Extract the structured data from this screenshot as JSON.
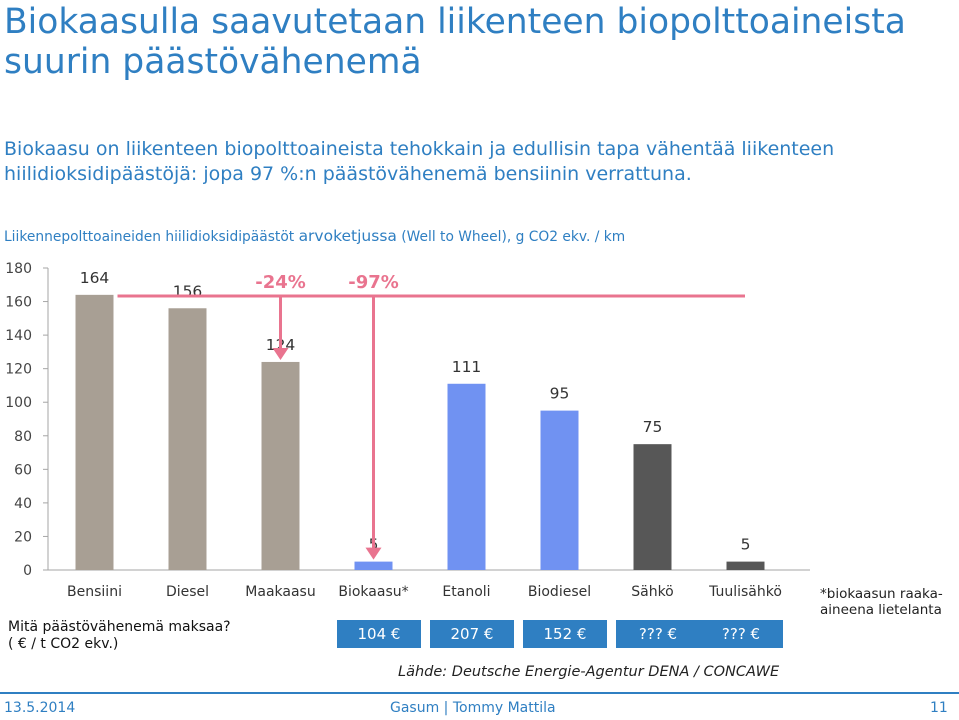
{
  "slide": {
    "title": "Biokaasulla saavutetaan liikenteen biopolttoaineista suurin päästövähenemä",
    "subtitle": "Biokaasu on liikenteen biopolttoaineista tehokkain ja edullisin tapa vähentää liikenteen hiilidioksidipäästöjä: jopa 97 %:n päästövähenemä bensiinin verrattuna.",
    "chart_caption_part1": "Liikennepolttoaineiden hiilidioksidipäästöt ",
    "chart_caption_part2": "arvoketjussa",
    "chart_caption_part3": " (Well to Wheel), g CO2 ekv. / km",
    "cost_question_line1": "Mitä päästövähenemä maksaa?",
    "cost_question_line2": "( € / t CO2 ekv.)",
    "cost_values": [
      "104 €",
      "207 €",
      "152 €",
      "??? €",
      "??? €"
    ],
    "source": "Lähde: Deutsche Energie-Agentur DENA / CONCAWE",
    "footnote": "*biokaasun raaka-aineena lietelanta",
    "footer_date": "13.5.2014",
    "footer_center": "Gasum | Tommy Mattila",
    "footer_page": "11"
  },
  "colors": {
    "accent": "#2f7fc2",
    "fossil": "#a89f94",
    "bio": "#7092f2",
    "electric": "#575757",
    "reduction": "#e9748f"
  },
  "chart_data": {
    "type": "bar",
    "categories": [
      "Bensiini",
      "Diesel",
      "Maakaasu",
      "Biokaasu*",
      "Etanoli",
      "Biodiesel",
      "Sähkö",
      "Tuulisähkö"
    ],
    "values": [
      164,
      156,
      124,
      5,
      111,
      95,
      75,
      5
    ],
    "groups": [
      "fossil",
      "fossil",
      "fossil",
      "bio",
      "bio",
      "bio",
      "electric",
      "electric"
    ],
    "data_labels": [
      "164",
      "156",
      "124",
      "5",
      "111",
      "95",
      "75",
      "5"
    ],
    "ylim": [
      0,
      180
    ],
    "yticks": [
      "0",
      "20",
      "40",
      "60",
      "80",
      "100",
      "120",
      "140",
      "160",
      "180"
    ],
    "annotations": [
      {
        "text": "-24%",
        "from_category": "Bensiini",
        "to_category": "Maakaasu"
      },
      {
        "text": "-97%",
        "from_category": "Bensiini",
        "to_category": "Biokaasu*"
      }
    ]
  }
}
